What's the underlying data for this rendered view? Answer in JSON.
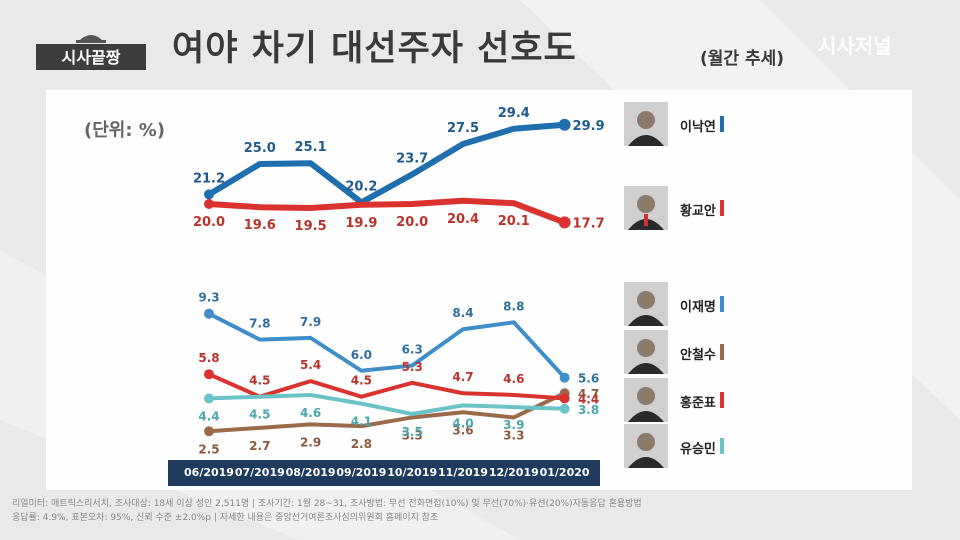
{
  "header": {
    "logo_text": "시사끝짱",
    "title": "여야 차기 대선주자 선호도",
    "subtitle": "(월간 추세)",
    "brand": "시사저널"
  },
  "chart_data": {
    "type": "line",
    "unit_label": "(단위: %)",
    "categories": [
      "06/2019",
      "07/2019",
      "08/2019",
      "09/2019",
      "10/2019",
      "11/2019",
      "12/2019",
      "01/2020"
    ],
    "series": [
      {
        "name": "이낙연",
        "color": "#1f6fae",
        "values": [
          21.2,
          25.0,
          25.1,
          20.2,
          23.7,
          27.5,
          29.4,
          29.9
        ]
      },
      {
        "name": "황교안",
        "color": "#d9322f",
        "values": [
          20.0,
          19.6,
          19.5,
          19.9,
          20.0,
          20.4,
          20.1,
          17.7
        ]
      },
      {
        "name": "이재명",
        "color": "#3f8ec9",
        "values": [
          9.3,
          7.8,
          7.9,
          6.0,
          6.3,
          8.4,
          8.8,
          5.6
        ]
      },
      {
        "name": "안철수",
        "color": "#9a6b4a",
        "values": [
          2.5,
          2.7,
          2.9,
          2.8,
          3.3,
          3.6,
          3.3,
          4.7
        ]
      },
      {
        "name": "홍준표",
        "color": "#d9322f",
        "values": [
          5.8,
          4.5,
          5.4,
          4.5,
          5.3,
          4.7,
          4.6,
          4.4
        ]
      },
      {
        "name": "유승민",
        "color": "#6cc3c7",
        "values": [
          4.4,
          4.5,
          4.6,
          4.1,
          3.5,
          4.0,
          3.9,
          3.8
        ]
      }
    ]
  },
  "footnote": {
    "line1": "리얼미터: 매트릭스리서치, 조사대상: 18세 이상 성인 2,511명 | 조사기간: 1월 28~31, 조사방법: 무선 전화면접(10%) 및 무선(70%)·유선(20%)자동응답 혼용방법",
    "line2": "응답률: 4.9%, 표본오차: 95%, 신뢰 수준 ±2.0%p | 자세한 내용은 중앙선거여론조사심의위원회 홈페이지 참조"
  }
}
